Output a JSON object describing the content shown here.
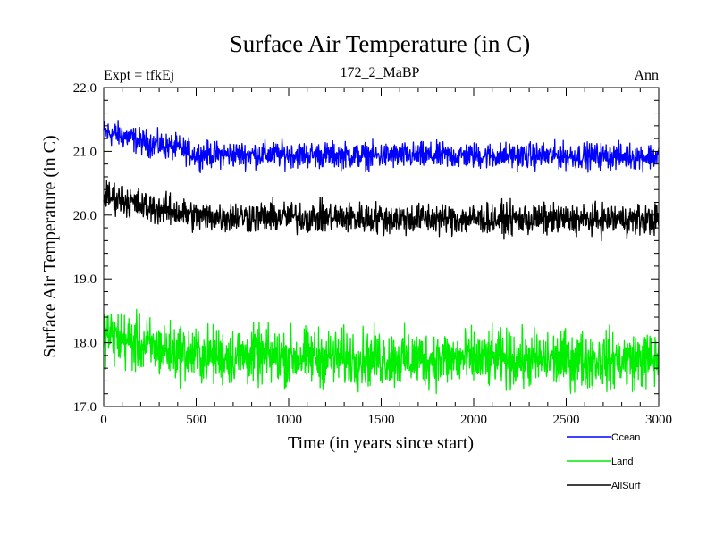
{
  "chart_data": {
    "type": "line",
    "title": "Surface Air Temperature (in C)",
    "subtitle": "172_2_MaBP",
    "expt_label": "Expt = tfkEj",
    "season_label": "Ann",
    "xlabel": "Time (in years since start)",
    "ylabel": "Surface Air Temperature (in C)",
    "xlim": [
      0,
      3000
    ],
    "ylim": [
      17.0,
      22.0
    ],
    "x_ticks": [
      0,
      500,
      1000,
      1500,
      2000,
      2500,
      3000
    ],
    "x_tick_labels": [
      "0",
      "500",
      "1000",
      "1500",
      "2000",
      "2500",
      "3000"
    ],
    "y_ticks": [
      17.0,
      18.0,
      19.0,
      20.0,
      21.0,
      22.0
    ],
    "y_tick_labels": [
      "17.0",
      "18.0",
      "19.0",
      "20.0",
      "21.0",
      "22.0"
    ],
    "grid": false,
    "legend_position": "bottom-right, below plot",
    "series": [
      {
        "name": "Ocean",
        "color": "#0000ff",
        "x": [
          0,
          100,
          200,
          300,
          400,
          500,
          1000,
          1500,
          2000,
          2500,
          3000
        ],
        "values": [
          21.3,
          21.25,
          21.15,
          21.1,
          21.05,
          20.95,
          20.95,
          20.93,
          20.93,
          20.93,
          20.92
        ],
        "noise_amplitude": 0.1
      },
      {
        "name": "Land",
        "color": "#00ee00",
        "x": [
          0,
          100,
          200,
          300,
          400,
          500,
          1000,
          1500,
          2000,
          2500,
          3000
        ],
        "values": [
          18.15,
          18.05,
          17.95,
          17.9,
          17.85,
          17.8,
          17.78,
          17.75,
          17.74,
          17.73,
          17.73
        ],
        "noise_amplitude": 0.22
      },
      {
        "name": "AllSurf",
        "color": "#000000",
        "x": [
          0,
          100,
          200,
          300,
          400,
          500,
          1000,
          1500,
          2000,
          2500,
          3000
        ],
        "values": [
          20.3,
          20.25,
          20.15,
          20.1,
          20.05,
          19.98,
          19.97,
          19.95,
          19.94,
          19.93,
          19.93
        ],
        "noise_amplitude": 0.12
      }
    ]
  }
}
